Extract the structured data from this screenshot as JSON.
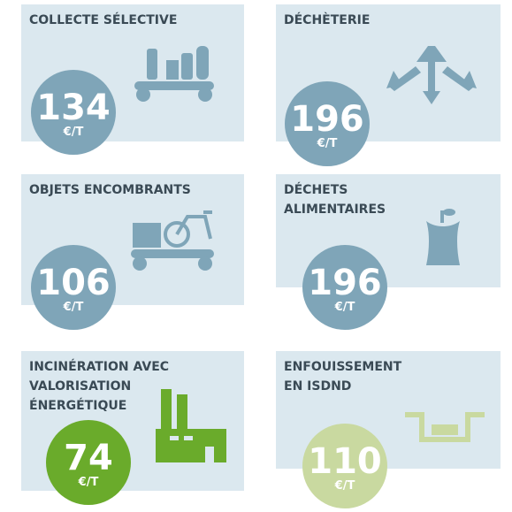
{
  "tiles": [
    {
      "title": [
        "COLLECTE SÉLECTIVE"
      ],
      "value": 134,
      "unit": "€/T",
      "color": "#7fa5b8"
    },
    {
      "title": [
        "DÉCHÈTERIE"
      ],
      "value": 196,
      "unit": "€/T",
      "color": "#7fa5b8"
    },
    {
      "title": [
        "OBJETS ENCOMBRANTS"
      ],
      "value": 106,
      "unit": "€/T",
      "color": "#7fa5b8"
    },
    {
      "title": [
        "DÉCHETS",
        "ALIMENTAIRES"
      ],
      "value": 196,
      "unit": "€/T",
      "color": "#7fa5b8"
    },
    {
      "title": [
        "INCINÉRATION AVEC",
        "VALORISATION",
        "ÉNERGÉTIQUE"
      ],
      "value": 74,
      "unit": "€/T",
      "color": "#6aab2b"
    },
    {
      "title": [
        "ENFOUISSEMENT",
        "EN ISDND"
      ],
      "value": 110,
      "unit": "€/T",
      "color": "#c9d9a0"
    }
  ]
}
